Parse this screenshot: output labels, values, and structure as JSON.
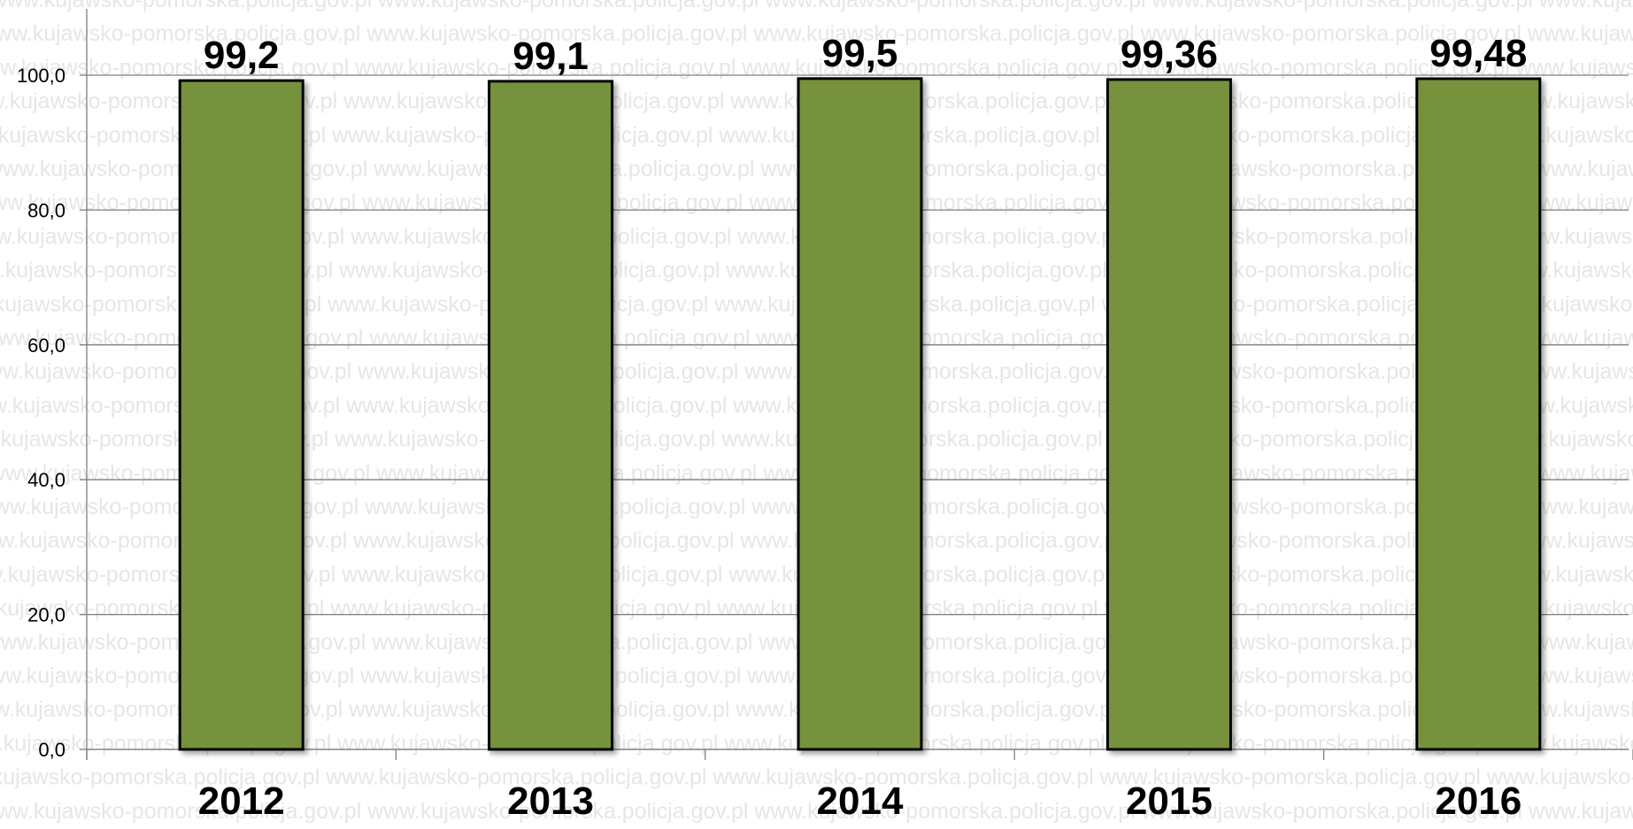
{
  "watermark": "www.kujawsko-pomorska.policja.gov.pl",
  "chart_data": {
    "type": "bar",
    "categories": [
      "2012",
      "2013",
      "2014",
      "2015",
      "2016"
    ],
    "values": [
      99.2,
      99.1,
      99.5,
      99.36,
      99.48
    ],
    "value_labels": [
      "99,2",
      "99,1",
      "99,5",
      "99,36",
      "99,48"
    ],
    "y_ticks": [
      0,
      20,
      40,
      60,
      80,
      100
    ],
    "y_tick_labels": [
      "0,0",
      "20,0",
      "40,0",
      "60,0",
      "80,0",
      "100,0"
    ],
    "ylim": [
      0,
      100
    ],
    "grid": true,
    "legend": "none",
    "bar_color": "#76923c",
    "bar_edge_color": "#000000",
    "title": "",
    "xlabel": "",
    "ylabel": ""
  }
}
